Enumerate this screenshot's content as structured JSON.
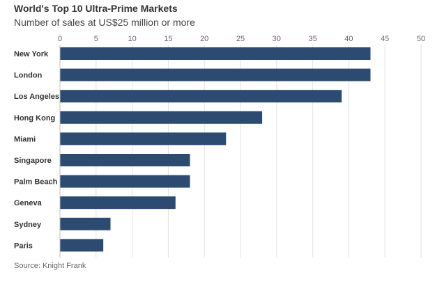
{
  "chart_data": {
    "type": "bar",
    "orientation": "horizontal",
    "title": "World's Top 10 Ultra-Prime Markets",
    "subtitle": "Number of sales at US$25 million or more",
    "source": "Source: Knight Frank",
    "categories": [
      "New York",
      "London",
      "Los Angeles",
      "Hong Kong",
      "Miami",
      "Singapore",
      "Palm Beach",
      "Geneva",
      "Sydney",
      "Paris"
    ],
    "values": [
      43,
      43,
      39,
      28,
      23,
      18,
      18,
      16,
      7,
      6
    ],
    "xlim": [
      0,
      50
    ],
    "ticks": [
      0,
      5,
      10,
      15,
      20,
      25,
      30,
      35,
      40,
      45,
      50
    ],
    "tick_position": "top",
    "grid": true,
    "bar_color": "#2d4a70"
  }
}
